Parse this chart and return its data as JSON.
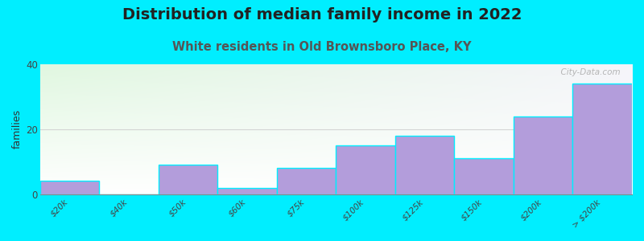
{
  "title": "Distribution of median family income in 2022",
  "subtitle": "White residents in Old Brownsboro Place, KY",
  "ylabel": "families",
  "categories": [
    "$20k",
    "$40k",
    "$50k",
    "$60k",
    "$75k",
    "$100k",
    "$125k",
    "$150k",
    "$200k",
    "> $200k"
  ],
  "values": [
    4,
    0,
    9,
    2,
    8,
    15,
    18,
    11,
    24,
    34
  ],
  "bar_color": "#b39ddb",
  "background_outer": "#00eeff",
  "ylim": [
    0,
    40
  ],
  "yticks": [
    0,
    20,
    40
  ],
  "title_fontsize": 14,
  "subtitle_fontsize": 10.5,
  "subtitle_color": "#555555",
  "ylabel_fontsize": 9,
  "watermark": "  City-Data.com",
  "grid_color": "#cccccc"
}
